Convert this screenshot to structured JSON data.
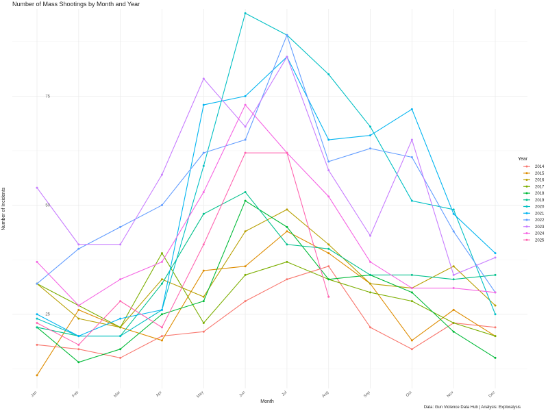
{
  "chart_data": {
    "type": "line",
    "title": "Number of Mass Shootings by Month and Year",
    "xlabel": "Month",
    "ylabel": "Number of Incidents",
    "caption": "Data: Gun Violence Data Hub | Analysis: Exploralysis",
    "categories": [
      "Jan",
      "Feb",
      "Mar",
      "Apr",
      "May",
      "Jun",
      "Jul",
      "Aug",
      "Sep",
      "Oct",
      "Nov",
      "Dec"
    ],
    "y_ticks": [
      25,
      50,
      75
    ],
    "ylim": [
      8,
      95
    ],
    "grid": true,
    "legend": {
      "title": "Year",
      "position": "right"
    },
    "series": [
      {
        "name": "2014",
        "color": "#F8766D",
        "values": [
          18,
          17,
          15,
          20,
          21,
          28,
          33,
          36,
          22,
          17,
          23,
          22
        ]
      },
      {
        "name": "2015",
        "color": "#DE8C00",
        "values": [
          11,
          26,
          22,
          19,
          35,
          36,
          44,
          39,
          32,
          19,
          26,
          20
        ]
      },
      {
        "name": "2016",
        "color": "#B79F00",
        "values": [
          32,
          24,
          22,
          33,
          29,
          44,
          49,
          41,
          32,
          31,
          36,
          27
        ]
      },
      {
        "name": "2017",
        "color": "#7CAE00",
        "values": [
          32,
          27,
          22,
          39,
          23,
          34,
          37,
          33,
          30,
          28,
          23,
          20
        ]
      },
      {
        "name": "2018",
        "color": "#00BA38",
        "values": [
          22,
          14,
          17,
          25,
          28,
          51,
          45,
          33,
          34,
          30,
          21,
          15
        ]
      },
      {
        "name": "2019",
        "color": "#00C08B",
        "values": [
          22,
          20,
          20,
          32,
          48,
          53,
          41,
          40,
          34,
          34,
          33,
          34
        ]
      },
      {
        "name": "2020",
        "color": "#00BFC4",
        "values": [
          24,
          20,
          20,
          26,
          59,
          94,
          89,
          80,
          68,
          51,
          49,
          25
        ]
      },
      {
        "name": "2021",
        "color": "#00B4F0",
        "values": [
          25,
          20,
          24,
          26,
          73,
          75,
          84,
          65,
          66,
          72,
          48,
          39
        ]
      },
      {
        "name": "2022",
        "color": "#619CFF",
        "values": [
          32,
          40,
          45,
          50,
          62,
          65,
          89,
          60,
          63,
          61,
          44,
          30
        ]
      },
      {
        "name": "2023",
        "color": "#C77CFF",
        "values": [
          54,
          41,
          41,
          57,
          79,
          68,
          84,
          58,
          43,
          65,
          34,
          38
        ]
      },
      {
        "name": "2024",
        "color": "#F564E3",
        "values": [
          37,
          27,
          33,
          37,
          53,
          73,
          62,
          52,
          37,
          31,
          31,
          30
        ]
      },
      {
        "name": "2025",
        "color": "#FF64B0",
        "values": [
          23,
          18,
          28,
          22,
          41,
          62,
          62,
          29,
          null,
          null,
          null,
          null
        ]
      }
    ]
  }
}
